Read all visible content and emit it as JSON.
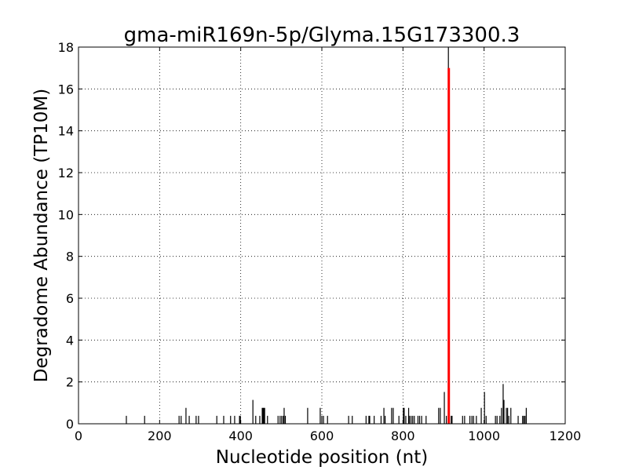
{
  "chart_data": {
    "type": "bar",
    "title": "gma-miR169n-5p/Glyma.15G173300.3",
    "xlabel": "Nucleotide position (nt)",
    "ylabel": "Degradome Abundance (TP10M)",
    "xlim": [
      0,
      1200
    ],
    "ylim": [
      0,
      18
    ],
    "xticks": [
      0,
      200,
      400,
      600,
      800,
      1000,
      1200
    ],
    "yticks": [
      0,
      2,
      4,
      6,
      8,
      10,
      12,
      14,
      16,
      18
    ],
    "grid": true,
    "colors": {
      "bars": "#000000",
      "highlight": "#ff0000"
    },
    "series": [
      {
        "points": [
          [
            118,
            0.38
          ],
          [
            163,
            0.38
          ],
          [
            248,
            0.38
          ],
          [
            253,
            0.38
          ],
          [
            265,
            0.76
          ],
          [
            273,
            0.38
          ],
          [
            290,
            0.38
          ],
          [
            296,
            0.38
          ],
          [
            341,
            0.38
          ],
          [
            358,
            0.38
          ],
          [
            375,
            0.38
          ],
          [
            385,
            0.38
          ],
          [
            397,
            0.38
          ],
          [
            399,
            0.38
          ],
          [
            430,
            1.14
          ],
          [
            437,
            0.38
          ],
          [
            447,
            0.38
          ],
          [
            453,
            0.76
          ],
          [
            455,
            0.76
          ],
          [
            457,
            0.76
          ],
          [
            459,
            0.76
          ],
          [
            466,
            0.38
          ],
          [
            492,
            0.38
          ],
          [
            497,
            0.38
          ],
          [
            501,
            0.38
          ],
          [
            505,
            0.38
          ],
          [
            507,
            0.76
          ],
          [
            510,
            0.38
          ],
          [
            565,
            0.76
          ],
          [
            596,
            0.76
          ],
          [
            600,
            0.38
          ],
          [
            604,
            0.38
          ],
          [
            614,
            0.38
          ],
          [
            666,
            0.38
          ],
          [
            675,
            0.38
          ],
          [
            709,
            0.38
          ],
          [
            716,
            0.38
          ],
          [
            718,
            0.38
          ],
          [
            729,
            0.38
          ],
          [
            746,
            0.38
          ],
          [
            753,
            0.76
          ],
          [
            756,
            0.38
          ],
          [
            772,
            0.76
          ],
          [
            776,
            0.76
          ],
          [
            790,
            0.38
          ],
          [
            801,
            0.76
          ],
          [
            803,
            0.76
          ],
          [
            807,
            0.38
          ],
          [
            814,
            0.76
          ],
          [
            816,
            0.38
          ],
          [
            820,
            0.38
          ],
          [
            824,
            0.38
          ],
          [
            828,
            0.38
          ],
          [
            837,
            0.38
          ],
          [
            841,
            0.38
          ],
          [
            846,
            0.38
          ],
          [
            857,
            0.38
          ],
          [
            888,
            0.76
          ],
          [
            892,
            0.76
          ],
          [
            902,
            1.52
          ],
          [
            907,
            0.38
          ],
          [
            912,
            18.5
          ],
          [
            919,
            0.38
          ],
          [
            921,
            0.38
          ],
          [
            947,
            0.38
          ],
          [
            952,
            0.38
          ],
          [
            965,
            0.38
          ],
          [
            970,
            0.38
          ],
          [
            974,
            0.38
          ],
          [
            981,
            0.38
          ],
          [
            993,
            0.76
          ],
          [
            1001,
            1.52
          ],
          [
            1005,
            0.38
          ],
          [
            1028,
            0.38
          ],
          [
            1032,
            0.38
          ],
          [
            1039,
            0.38
          ],
          [
            1043,
            0.76
          ],
          [
            1047,
            1.9
          ],
          [
            1049,
            1.14
          ],
          [
            1055,
            0.76
          ],
          [
            1058,
            0.76
          ],
          [
            1061,
            0.38
          ],
          [
            1066,
            0.76
          ],
          [
            1084,
            0.38
          ],
          [
            1095,
            0.38
          ],
          [
            1098,
            0.38
          ],
          [
            1101,
            0.38
          ],
          [
            1104,
            0.76
          ]
        ]
      },
      {
        "highlight": true,
        "points": [
          [
            913,
            17
          ]
        ]
      }
    ]
  }
}
